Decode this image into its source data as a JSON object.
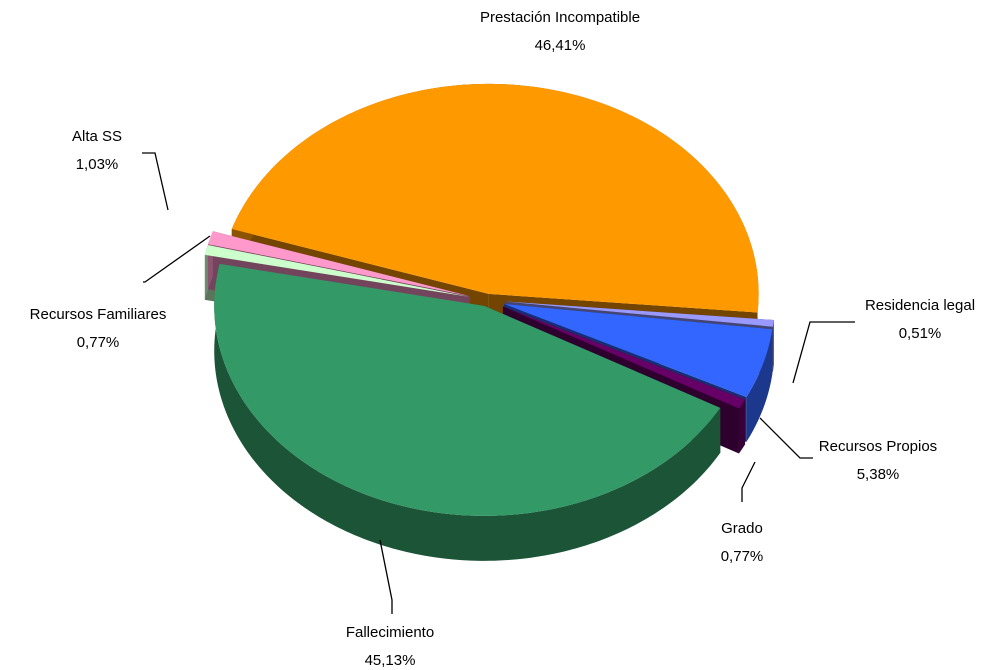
{
  "chart_data": {
    "type": "pie",
    "categories": [
      "Prestación Incompatible",
      "Residencia legal",
      "Recursos Propios",
      "Grado",
      "Fallecimiento",
      "Recursos Familiares",
      "Alta SS"
    ],
    "values": [
      46.41,
      0.51,
      5.38,
      0.77,
      45.13,
      0.77,
      1.03
    ],
    "value_labels": [
      "46,41%",
      "0,51%",
      "5,38%",
      "0,77%",
      "45,13%",
      "0,77%",
      "1,03%"
    ],
    "colors": [
      "#ff9900",
      "#9999ff",
      "#3366ff",
      "#660066",
      "#339966",
      "#ccffcc",
      "#ff99cc"
    ]
  }
}
